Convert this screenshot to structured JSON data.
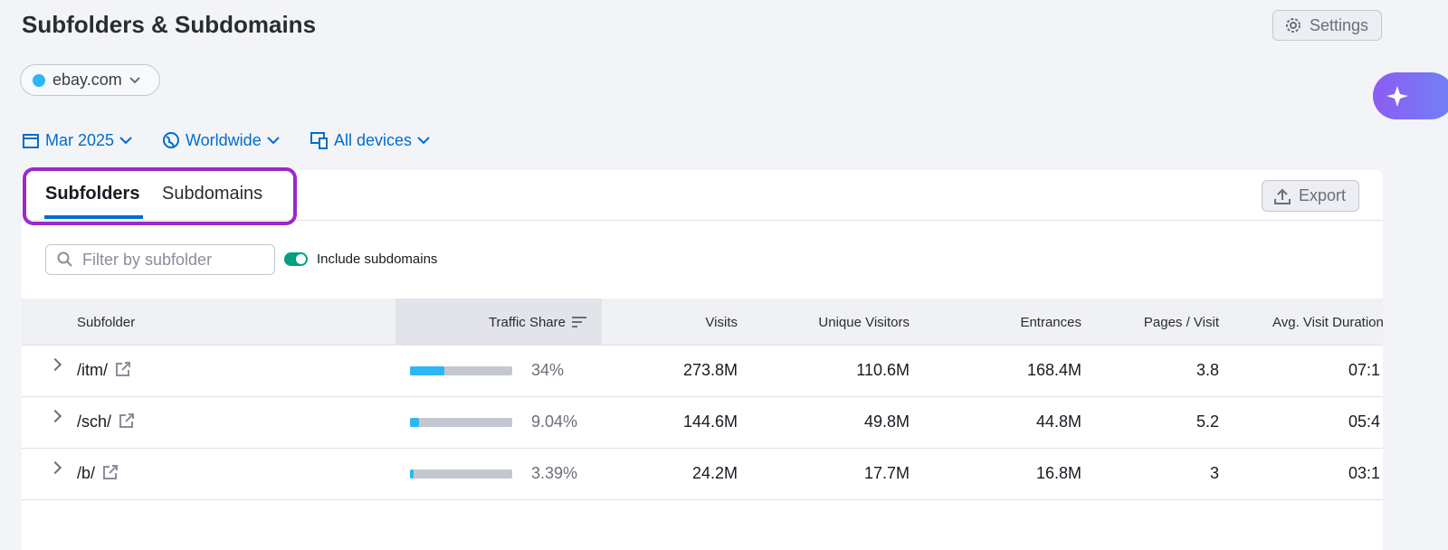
{
  "header": {
    "title": "Subfolders & Subdomains",
    "settings": "Settings"
  },
  "domain": "ebay.com",
  "filters": [
    "Mar 2025",
    "Worldwide",
    "All devices"
  ],
  "tabs": [
    "Subfolders",
    "Subdomains"
  ],
  "export": "Export",
  "search_placeholder": "Filter by subfolder",
  "toggle_label": "Include subdomains",
  "table": {
    "columns": [
      "Subfolder",
      "Traffic Share",
      "Visits",
      "Unique Visitors",
      "Entrances",
      "Pages / Visit",
      "Avg. Visit Duration"
    ],
    "rows": [
      {
        "subfolder": "/itm/",
        "traffic_share": 34,
        "traffic_share_label": "34%",
        "visits": "273.8M",
        "unique_visitors": "110.6M",
        "entrances": "168.4M",
        "pages_per_visit": "3.8",
        "avg_visit_duration": "07:1"
      },
      {
        "subfolder": "/sch/",
        "traffic_share": 9.04,
        "traffic_share_label": "9.04%",
        "visits": "144.6M",
        "unique_visitors": "49.8M",
        "entrances": "44.8M",
        "pages_per_visit": "5.2",
        "avg_visit_duration": "05:4"
      },
      {
        "subfolder": "/b/",
        "traffic_share": 3.39,
        "traffic_share_label": "3.39%",
        "visits": "24.2M",
        "unique_visitors": "17.7M",
        "entrances": "16.8M",
        "pages_per_visit": "3",
        "avg_visit_duration": "03:1"
      }
    ]
  }
}
